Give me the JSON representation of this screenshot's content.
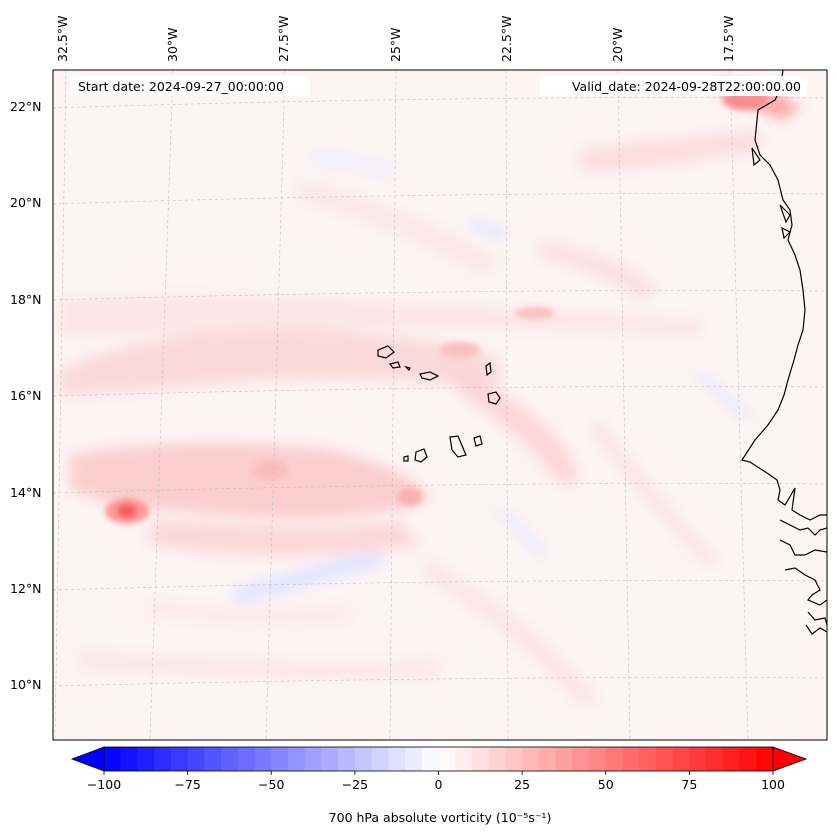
{
  "map": {
    "start_label": "Start date: 2024-09-27_00:00:00",
    "valid_label": "Valid_date: 2024-09-28T22:00:00.00",
    "lon_labels": [
      "32.5°W",
      "30°W",
      "27.5°W",
      "25°W",
      "22.5°W",
      "20°W",
      "17.5°W"
    ],
    "lat_labels": [
      "22°N",
      "20°N",
      "18°N",
      "16°N",
      "14°N",
      "12°N",
      "10°N"
    ],
    "colors": {
      "coastline": "#000000",
      "gridline": "#b8b8b8",
      "background_field": "#fdf3f3"
    }
  },
  "colorbar": {
    "title": "700 hPa absolute vorticity (10⁻⁵s⁻¹)",
    "ticks": [
      "−100",
      "−75",
      "−50",
      "−25",
      "0",
      "25",
      "50",
      "75",
      "100"
    ],
    "min": -100,
    "max": 100,
    "low_color": "#0000ff",
    "mid_color": "#ffffff",
    "high_color": "#ff0000"
  }
}
